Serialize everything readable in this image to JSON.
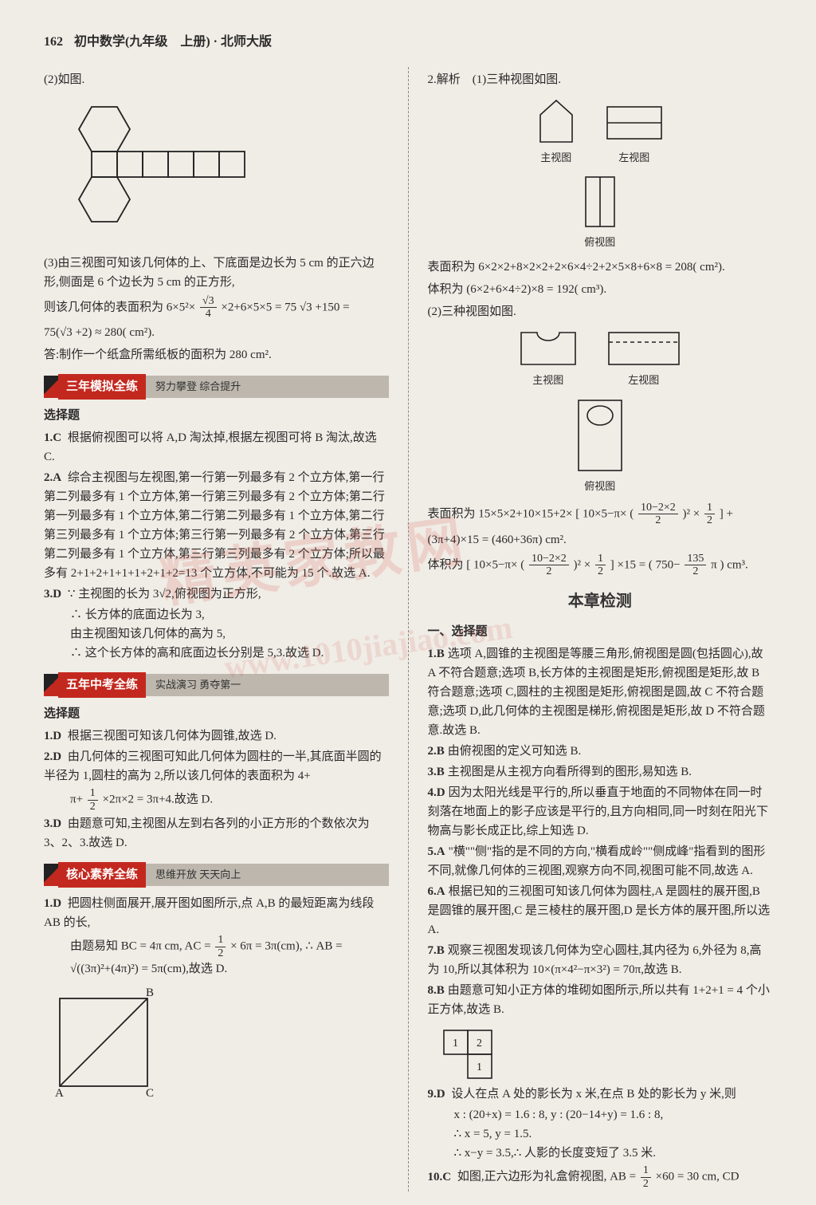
{
  "header": {
    "page_number": "162",
    "title": "初中数学(九年级　上册) · 北师大版"
  },
  "watermark": {
    "main": "精英家教网",
    "url": "www.1010jiajiao.com"
  },
  "left": {
    "p0": "(2)如图.",
    "net_figure": {
      "type": "diagram",
      "description": "hexagon-net",
      "square_size": 32,
      "hex_radius": 32,
      "stroke": "#222",
      "fill": "none"
    },
    "p3_a": "(3)由三视图可知该几何体的上、下底面是边长为 5 cm 的正六边形,侧面是 6 个边长为 5 cm 的正方形,",
    "p3_b_prefix": "则该几何体的表面积为 6×5²×",
    "p3_b_mid": "×2+6×5×5 = 75",
    "p3_b_suffix": "+150 =",
    "sqrt3": "√3",
    "frac_sqrt3_4_top": "√3",
    "frac_sqrt3_4_bot": "4",
    "p3_c": "75(√3 +2) ≈ 280( cm²).",
    "p3_d": "答:制作一个纸盒所需纸板的面积为 280 cm².",
    "section1": {
      "title": "三年模拟全练",
      "sub": "努力攀登 综合提升"
    },
    "s1_sub": "选择题",
    "s1_q1": {
      "num": "1.C",
      "text": "根据俯视图可以将 A,D 淘汰掉,根据左视图可将 B 淘汰,故选 C."
    },
    "s1_q2": {
      "num": "2.A",
      "text": "综合主视图与左视图,第一行第一列最多有 2 个立方体,第一行第二列最多有 1 个立方体,第一行第三列最多有 2 个立方体;第二行第一列最多有 1 个立方体,第二行第二列最多有 1 个立方体,第二行第三列最多有 1 个立方体;第三行第一列最多有 2 个立方体,第三行第二列最多有 1 个立方体,第三行第三列最多有 2 个立方体;所以最多有 2+1+2+1+1+1+2+1+2=13 个立方体,不可能为 15 个.故选 A."
    },
    "s1_q3": {
      "num": "3.D",
      "text": "∵ 主视图的长为 3√2,俯视图为正方形,",
      "l2": "∴ 长方体的底面边长为 3,",
      "l3": "由主视图知该几何体的高为 5,",
      "l4": "∴ 这个长方体的高和底面边长分别是 5,3.故选 D."
    },
    "section2": {
      "title": "五年中考全练",
      "sub": "实战演习 勇夺第一"
    },
    "s2_sub": "选择题",
    "s2_q1": {
      "num": "1.D",
      "text": "根据三视图可知该几何体为圆锥,故选 D."
    },
    "s2_q2": {
      "num": "2.D",
      "text": "由几何体的三视图可知此几何体为圆柱的一半,其底面半圆的半径为 1,圆柱的高为 2,所以该几何体的表面积为 4+",
      "frac_1_2_top": "1",
      "frac_1_2_bot": "2",
      "tail": "×2π×2 = 3π+4.故选 D.",
      "prefix2": "π+"
    },
    "s2_q3": {
      "num": "3.D",
      "text": "由题意可知,主视图从左到右各列的小正方形的个数依次为 3、2、3.故选 D."
    },
    "section3": {
      "title": "核心素养全练",
      "sub": "思维开放 天天向上"
    },
    "s3_q1": {
      "num": "1.D",
      "text": "把圆柱侧面展开,展开图如图所示,点 A,B 的最短距离为线段 AB 的长,",
      "l2a": "由题易知 BC = 4π cm, AC =",
      "frac_top": "1",
      "frac_bot": "2",
      "l2b": "× 6π = 3π(cm), ∴ AB =",
      "l3": "√((3π)²+(4π)²) = 5π(cm),故选 D."
    },
    "triangle_fig": {
      "type": "diagram",
      "width": 150,
      "height": 130,
      "stroke": "#222",
      "labels": {
        "A": "A",
        "B": "B",
        "C": "C"
      }
    }
  },
  "right": {
    "p0": "2.解析　(1)三种视图如图.",
    "views1": {
      "front": "主视图",
      "left": "左视图",
      "top": "俯视图",
      "front_shape": "house",
      "left_shape": "rect2h",
      "top_shape": "rect2v"
    },
    "p1": "表面积为 6×2×2+8×2×2+2×6×4÷2+2×5×8+6×8 = 208( cm²).",
    "p2": "体积为 (6×2+6×4÷2)×8 = 192( cm³).",
    "p3": "(2)三种视图如图.",
    "views2": {
      "front": "主视图",
      "left": "左视图",
      "top": "俯视图",
      "front_shape": "notch",
      "left_shape": "dashed-rect",
      "top_shape": "rect-hole"
    },
    "surface_prefix": "表面积为 15×5×2+10×15+2×",
    "surface_mid": "10×5−π×",
    "frac_10m2x2_top": "10−2×2",
    "frac_div2": "2",
    "frac_1_2_top": "1",
    "frac_1_2_bot": "2",
    "surface_suffix1": "× ",
    "surface_tail": "+",
    "line2": "(3π+4)×15 = (460+36π) cm².",
    "vol_prefix": "体积为",
    "vol_mid": "10×5−π×",
    "vol_tail1": "×",
    "vol_tail2": "×15 =",
    "vol_result_a": "750−",
    "frac_135_top": "135",
    "frac_135_bot": "2",
    "vol_result_b": "π",
    "vol_unit": "cm³.",
    "chapter": "本章检测",
    "sec1": "一、选择题",
    "q": [
      {
        "num": "1.B",
        "text": "选项 A,圆锥的主视图是等腰三角形,俯视图是圆(包括圆心),故 A 不符合题意;选项 B,长方体的主视图是矩形,俯视图是矩形,故 B 符合题意;选项 C,圆柱的主视图是矩形,俯视图是圆,故 C 不符合题意;选项 D,此几何体的主视图是梯形,俯视图是矩形,故 D 不符合题意.故选 B."
      },
      {
        "num": "2.B",
        "text": "由俯视图的定义可知选 B."
      },
      {
        "num": "3.B",
        "text": "主视图是从主视方向看所得到的图形,易知选 B."
      },
      {
        "num": "4.D",
        "text": "因为太阳光线是平行的,所以垂直于地面的不同物体在同一时刻落在地面上的影子应该是平行的,且方向相同,同一时刻在阳光下物高与影长成正比,综上知选 D."
      },
      {
        "num": "5.A",
        "text": "\"横\"\"侧\"指的是不同的方向,\"横看成岭\"\"侧成峰\"指看到的图形不同,就像几何体的三视图,观察方向不同,视图可能不同,故选 A."
      },
      {
        "num": "6.A",
        "text": "根据已知的三视图可知该几何体为圆柱,A 是圆柱的展开图,B 是圆锥的展开图,C 是三棱柱的展开图,D 是长方体的展开图,所以选 A."
      },
      {
        "num": "7.B",
        "text": "观察三视图发现该几何体为空心圆柱,其内径为 6,外径为 8,高为 10,所以其体积为 10×(π×4²−π×3²) = 70π,故选 B."
      },
      {
        "num": "8.B",
        "text": "由题意可知小正方体的堆砌如图所示,所以共有 1+2+1 = 4 个小正方体,故选 B."
      }
    ],
    "cubes_fig": {
      "type": "diagram",
      "labels": [
        "1",
        "2",
        "1"
      ],
      "cell": 30,
      "stroke": "#222"
    },
    "q9": {
      "num": "9.D",
      "l1": "设人在点 A 处的影长为 x 米,在点 B 处的影长为 y 米,则",
      "l2": "x : (20+x) = 1.6 : 8, y : (20−14+y) = 1.6 : 8,",
      "l3": "∴ x = 5, y = 1.5.",
      "l4": "∴ x−y = 3.5,∴ 人影的长度变短了 3.5 米."
    },
    "q10": {
      "num": "10.C",
      "prefix": "如图,正六边形为礼盒俯视图, AB =",
      "frac_top": "1",
      "frac_bot": "2",
      "tail": "×60 = 30 cm, CD"
    }
  }
}
